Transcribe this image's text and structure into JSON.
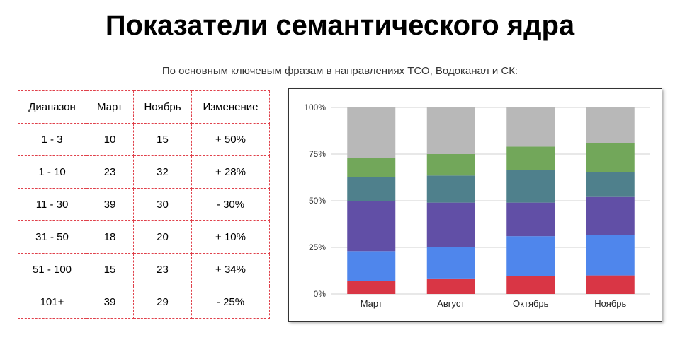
{
  "title": "Показатели семантического ядра",
  "subtitle": "По основным ключевым фразам в направлениях ТСО, Водоканал и СК:",
  "table": {
    "headers": [
      "Диапазон",
      "Март",
      "Ноябрь",
      "Изменение"
    ],
    "rows": [
      [
        "1 - 3",
        "10",
        "15",
        "+ 50%"
      ],
      [
        "1 - 10",
        "23",
        "32",
        "+ 28%"
      ],
      [
        "11 - 30",
        "39",
        "30",
        "- 30%"
      ],
      [
        "31 - 50",
        "18",
        "20",
        "+ 10%"
      ],
      [
        "51 - 100",
        "15",
        "23",
        "+ 34%"
      ],
      [
        "101+",
        "39",
        "29",
        "- 25%"
      ]
    ]
  },
  "chart_data": {
    "type": "bar",
    "stacked": "percent",
    "categories": [
      "Март",
      "Август",
      "Октябрь",
      "Ноябрь"
    ],
    "series": [
      {
        "name": "series-1",
        "color": "#d93645",
        "values": [
          7,
          8,
          9.5,
          10
        ]
      },
      {
        "name": "series-2",
        "color": "#4f86ec",
        "values": [
          16,
          17,
          21.5,
          21.5
        ]
      },
      {
        "name": "series-3",
        "color": "#614fa6",
        "values": [
          27,
          24,
          18,
          20.5
        ]
      },
      {
        "name": "series-4",
        "color": "#4f808c",
        "values": [
          12.5,
          14.5,
          17.5,
          13.5
        ]
      },
      {
        "name": "series-5",
        "color": "#72a75a",
        "values": [
          10.5,
          11.5,
          12.5,
          15.5
        ]
      },
      {
        "name": "series-6",
        "color": "#b8b8b8",
        "values": [
          27,
          25,
          21,
          19
        ]
      }
    ],
    "ylim": [
      0,
      100
    ],
    "yticks": [
      "0%",
      "25%",
      "50%",
      "75%",
      "100%"
    ],
    "ytick_values": [
      0,
      25,
      50,
      75,
      100
    ],
    "grid": true,
    "legend": "none"
  }
}
